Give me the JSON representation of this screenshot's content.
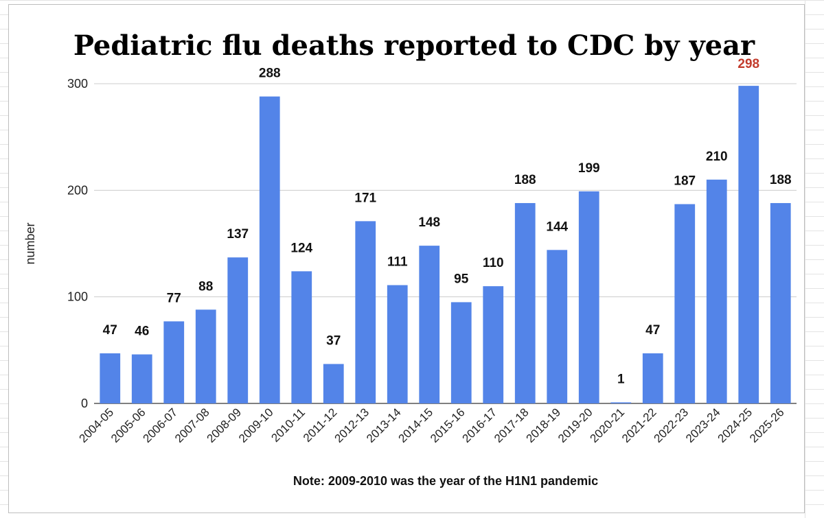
{
  "chart_data": {
    "type": "bar",
    "title": "Pediatric flu deaths reported to CDC by year",
    "xlabel": "",
    "ylabel": "number",
    "note": "Note: 2009-2010 was the year of the H1N1 pandemic",
    "categories": [
      "2004-05",
      "2005-06",
      "2006-07",
      "2007-08",
      "2008-09",
      "2009-10",
      "2010-11",
      "2011-12",
      "2012-13",
      "2013-14",
      "2014-15",
      "2015-16",
      "2016-17",
      "2017-18",
      "2018-19",
      "2019-20",
      "2020-21",
      "2021-22",
      "2022-23",
      "2023-24",
      "2024-25",
      "2025-26"
    ],
    "values": [
      47,
      46,
      77,
      88,
      137,
      288,
      124,
      37,
      171,
      111,
      148,
      95,
      110,
      188,
      144,
      199,
      1,
      47,
      187,
      210,
      298,
      188
    ],
    "yticks": [
      0,
      100,
      200,
      300
    ],
    "ylim": [
      0,
      300
    ],
    "grid": true,
    "legend": "none",
    "bar_color": "#5384e8",
    "highlight": {
      "category": "2024-25",
      "label_color": "#c23b2c"
    }
  }
}
